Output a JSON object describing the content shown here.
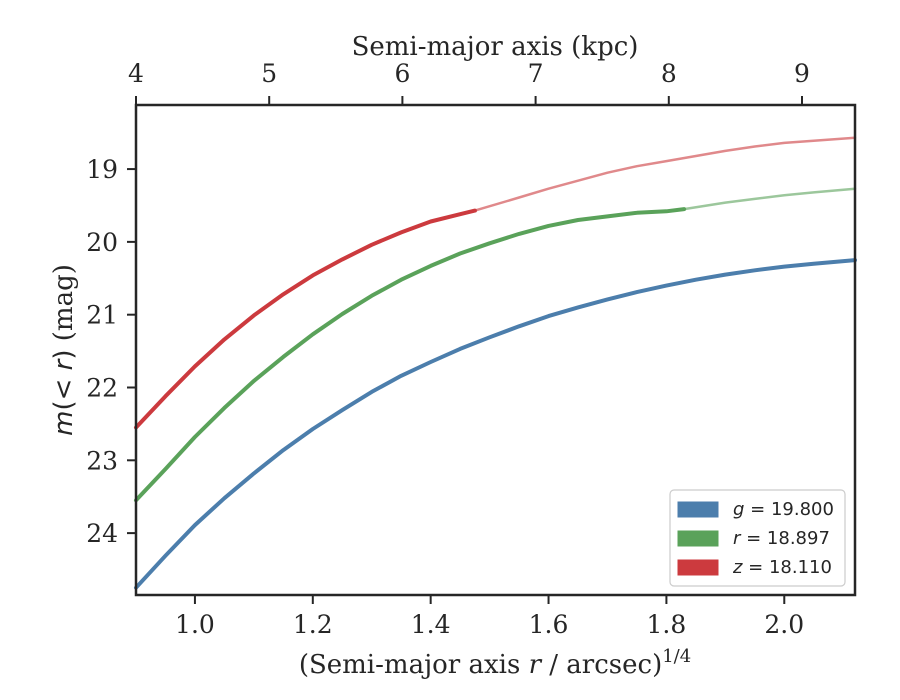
{
  "chart_data": {
    "type": "line",
    "xlabel_prefix": "(Semi-major axis ",
    "xlabel_var": "r",
    "xlabel_suffix": " / arcsec)",
    "xlabel_sup": "1/4",
    "x2label": "Semi-major axis (kpc)",
    "ylabel_fn": "m",
    "ylabel_arg": "(< ",
    "ylabel_var": "r",
    "ylabel_close": ")",
    "ylabel_unit": " (mag)",
    "xlim": [
      0.9,
      2.12
    ],
    "ylim": [
      24.85,
      18.12
    ],
    "y_inverted": true,
    "x_ticks": [
      "1.0",
      "1.2",
      "1.4",
      "1.6",
      "1.8",
      "2.0"
    ],
    "x2_ticks": [
      "4",
      "5",
      "6",
      "7",
      "8",
      "9"
    ],
    "y_ticks": [
      "19",
      "20",
      "21",
      "22",
      "23",
      "24"
    ],
    "legend_position": "lower-right",
    "grid": false,
    "series": [
      {
        "name": "g = 19.800",
        "band": "g",
        "total": "19.800",
        "color": "#4c7eac",
        "solid_x": [
          0.9,
          0.95,
          1.0,
          1.05,
          1.1,
          1.15,
          1.2,
          1.25,
          1.3,
          1.35,
          1.4,
          1.45,
          1.5,
          1.55,
          1.6,
          1.65,
          1.7,
          1.75,
          1.8,
          1.85,
          1.9,
          1.95,
          2.0,
          2.05,
          2.12
        ],
        "solid_y": [
          24.75,
          24.31,
          23.89,
          23.52,
          23.18,
          22.86,
          22.57,
          22.31,
          22.06,
          21.84,
          21.65,
          21.47,
          21.31,
          21.16,
          21.02,
          20.9,
          20.79,
          20.69,
          20.6,
          20.52,
          20.45,
          20.39,
          20.34,
          20.3,
          20.25
        ],
        "faint_x": [],
        "faint_y": []
      },
      {
        "name": "r = 18.897",
        "band": "r",
        "total": "18.897",
        "color": "#5aa25a",
        "solid_x": [
          0.9,
          0.95,
          1.0,
          1.05,
          1.1,
          1.15,
          1.2,
          1.25,
          1.3,
          1.35,
          1.4,
          1.45,
          1.5,
          1.55,
          1.6,
          1.65,
          1.7,
          1.75,
          1.8,
          1.83
        ],
        "solid_y": [
          23.55,
          23.12,
          22.68,
          22.28,
          21.91,
          21.58,
          21.27,
          20.99,
          20.74,
          20.52,
          20.33,
          20.16,
          20.02,
          19.89,
          19.78,
          19.7,
          19.65,
          19.6,
          19.58,
          19.55
        ],
        "faint_x": [
          1.83,
          1.9,
          1.95,
          2.0,
          2.05,
          2.12
        ],
        "faint_y": [
          19.55,
          19.46,
          19.41,
          19.36,
          19.32,
          19.27
        ]
      },
      {
        "name": "z = 18.110",
        "band": "z",
        "total": "18.110",
        "color": "#cc3a3e",
        "solid_x": [
          0.9,
          0.95,
          1.0,
          1.05,
          1.1,
          1.15,
          1.2,
          1.25,
          1.3,
          1.35,
          1.4,
          1.45,
          1.475
        ],
        "solid_y": [
          22.55,
          22.12,
          21.71,
          21.34,
          21.01,
          20.72,
          20.46,
          20.24,
          20.04,
          19.87,
          19.72,
          19.62,
          19.57
        ],
        "faint_x": [
          1.475,
          1.55,
          1.6,
          1.65,
          1.7,
          1.75,
          1.8,
          1.85,
          1.9,
          1.95,
          2.0,
          2.05,
          2.12
        ],
        "faint_y": [
          19.57,
          19.39,
          19.27,
          19.16,
          19.05,
          18.96,
          18.89,
          18.82,
          18.75,
          18.69,
          18.64,
          18.61,
          18.57
        ]
      }
    ]
  }
}
